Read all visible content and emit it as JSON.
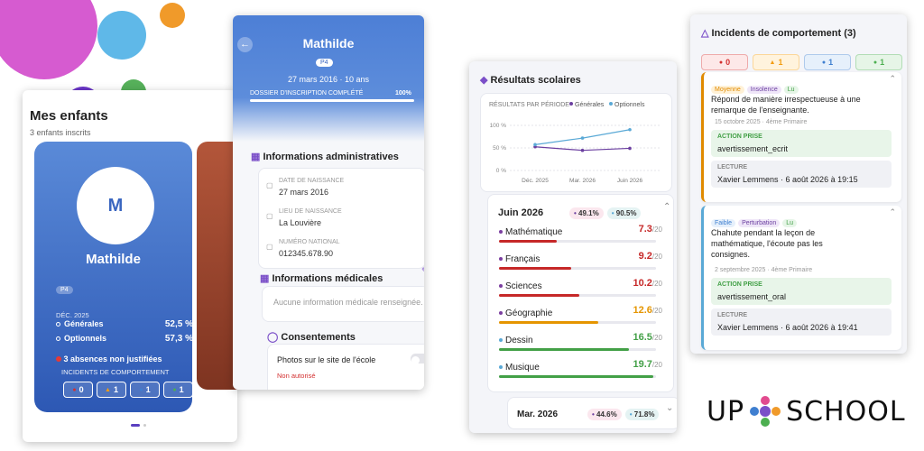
{
  "children_screen": {
    "title": "Mes enfants",
    "subtitle": "3 enfants inscrits",
    "child": {
      "initial": "M",
      "name": "Mathilde",
      "class": "P4",
      "period": "DÉC. 2025",
      "averages": [
        {
          "label": "Générales",
          "value": "52,5 %"
        },
        {
          "label": "Optionnels",
          "value": "57,3 %"
        }
      ],
      "absences": "3 absences non justifiées",
      "incidents_label": "INCIDENTS DE COMPORTEMENT",
      "incident_counts": [
        0,
        1,
        1,
        1
      ]
    }
  },
  "profile_screen": {
    "name": "Mathilde",
    "class": "P4",
    "birth": "27 mars 2016 · 10 ans",
    "progress_label": "DOSSIER D'INSCRIPTION COMPLÉTÉ",
    "progress_value": "100%",
    "admin": {
      "title": "Informations administratives",
      "fields": [
        {
          "label": "DATE DE NAISSANCE",
          "value": "27 mars 2016"
        },
        {
          "label": "LIEU DE NAISSANCE",
          "value": "La Louvière"
        },
        {
          "label": "NUMÉRO NATIONAL",
          "value": "012345.678.90"
        }
      ]
    },
    "medical": {
      "title": "Informations médicales",
      "text": "Aucune information médicale renseignée."
    },
    "consents": {
      "title": "Consentements",
      "item": "Photos sur le site de l'école",
      "status": "Non autorisé"
    }
  },
  "results_screen": {
    "title": "Résultats scolaires",
    "chart_data": {
      "type": "line",
      "title": "RÉSULTATS PAR PÉRIODE",
      "categories": [
        "Déc. 2025",
        "Mar. 2026",
        "Juin 2026"
      ],
      "series": [
        {
          "name": "Générales",
          "color": "#6b3fa0",
          "values": [
            52.5,
            44.6,
            49.1
          ]
        },
        {
          "name": "Optionnels",
          "color": "#5aa9d6",
          "values": [
            57.3,
            71.8,
            90.5
          ]
        }
      ],
      "ylim": [
        0,
        100
      ],
      "yticks": [
        {
          "value": 0,
          "label": "0 %"
        },
        {
          "value": 50,
          "label": "50 %"
        },
        {
          "value": 100,
          "label": "100 %"
        }
      ]
    },
    "periods": [
      {
        "name": "Juin 2026",
        "badges": [
          "49.1%",
          "90.5%"
        ],
        "scale": {
          "value": 20,
          "label": "/20"
        },
        "subjects": [
          {
            "name": "Mathématique",
            "value": 7.3
          },
          {
            "name": "Français",
            "value": 9.2
          },
          {
            "name": "Sciences",
            "value": 10.2
          },
          {
            "name": "Géographie",
            "value": 12.6
          },
          {
            "name": "Dessin",
            "value": 16.5
          },
          {
            "name": "Musique",
            "value": 19.7
          }
        ]
      },
      {
        "name": "Mar. 2026",
        "badges": [
          "44.6%",
          "71.8%"
        ]
      }
    ]
  },
  "incidents_screen": {
    "title": "Incidents de comportement (3)",
    "counts": [
      0,
      1,
      1,
      1
    ],
    "incidents": [
      {
        "tags": [
          "Moyenne",
          "Insolence",
          "Lu"
        ],
        "text": "Répond de manière irrespectueuse à une remarque de l'enseignante.",
        "meta": "15 octobre 2025 · 4ème Primaire",
        "action_label": "ACTION PRISE",
        "action": "avertissement_ecrit",
        "read_label": "LECTURE",
        "read": "Xavier Lemmens · 6 août 2026 à 19:15"
      },
      {
        "tags": [
          "Faible",
          "Perturbation",
          "Lu"
        ],
        "text": "Chahute pendant la leçon de mathématique, l'écoute pas les consignes.",
        "meta": "2 septembre 2025 · 4ème Primaire",
        "action_label": "ACTION PRISE",
        "action": "avertissement_oral",
        "read_label": "LECTURE",
        "read": "Xavier Lemmens · 6 août 2026 à 19:41"
      }
    ]
  },
  "logo": {
    "left": "UP",
    "right": "SCHOOL"
  }
}
